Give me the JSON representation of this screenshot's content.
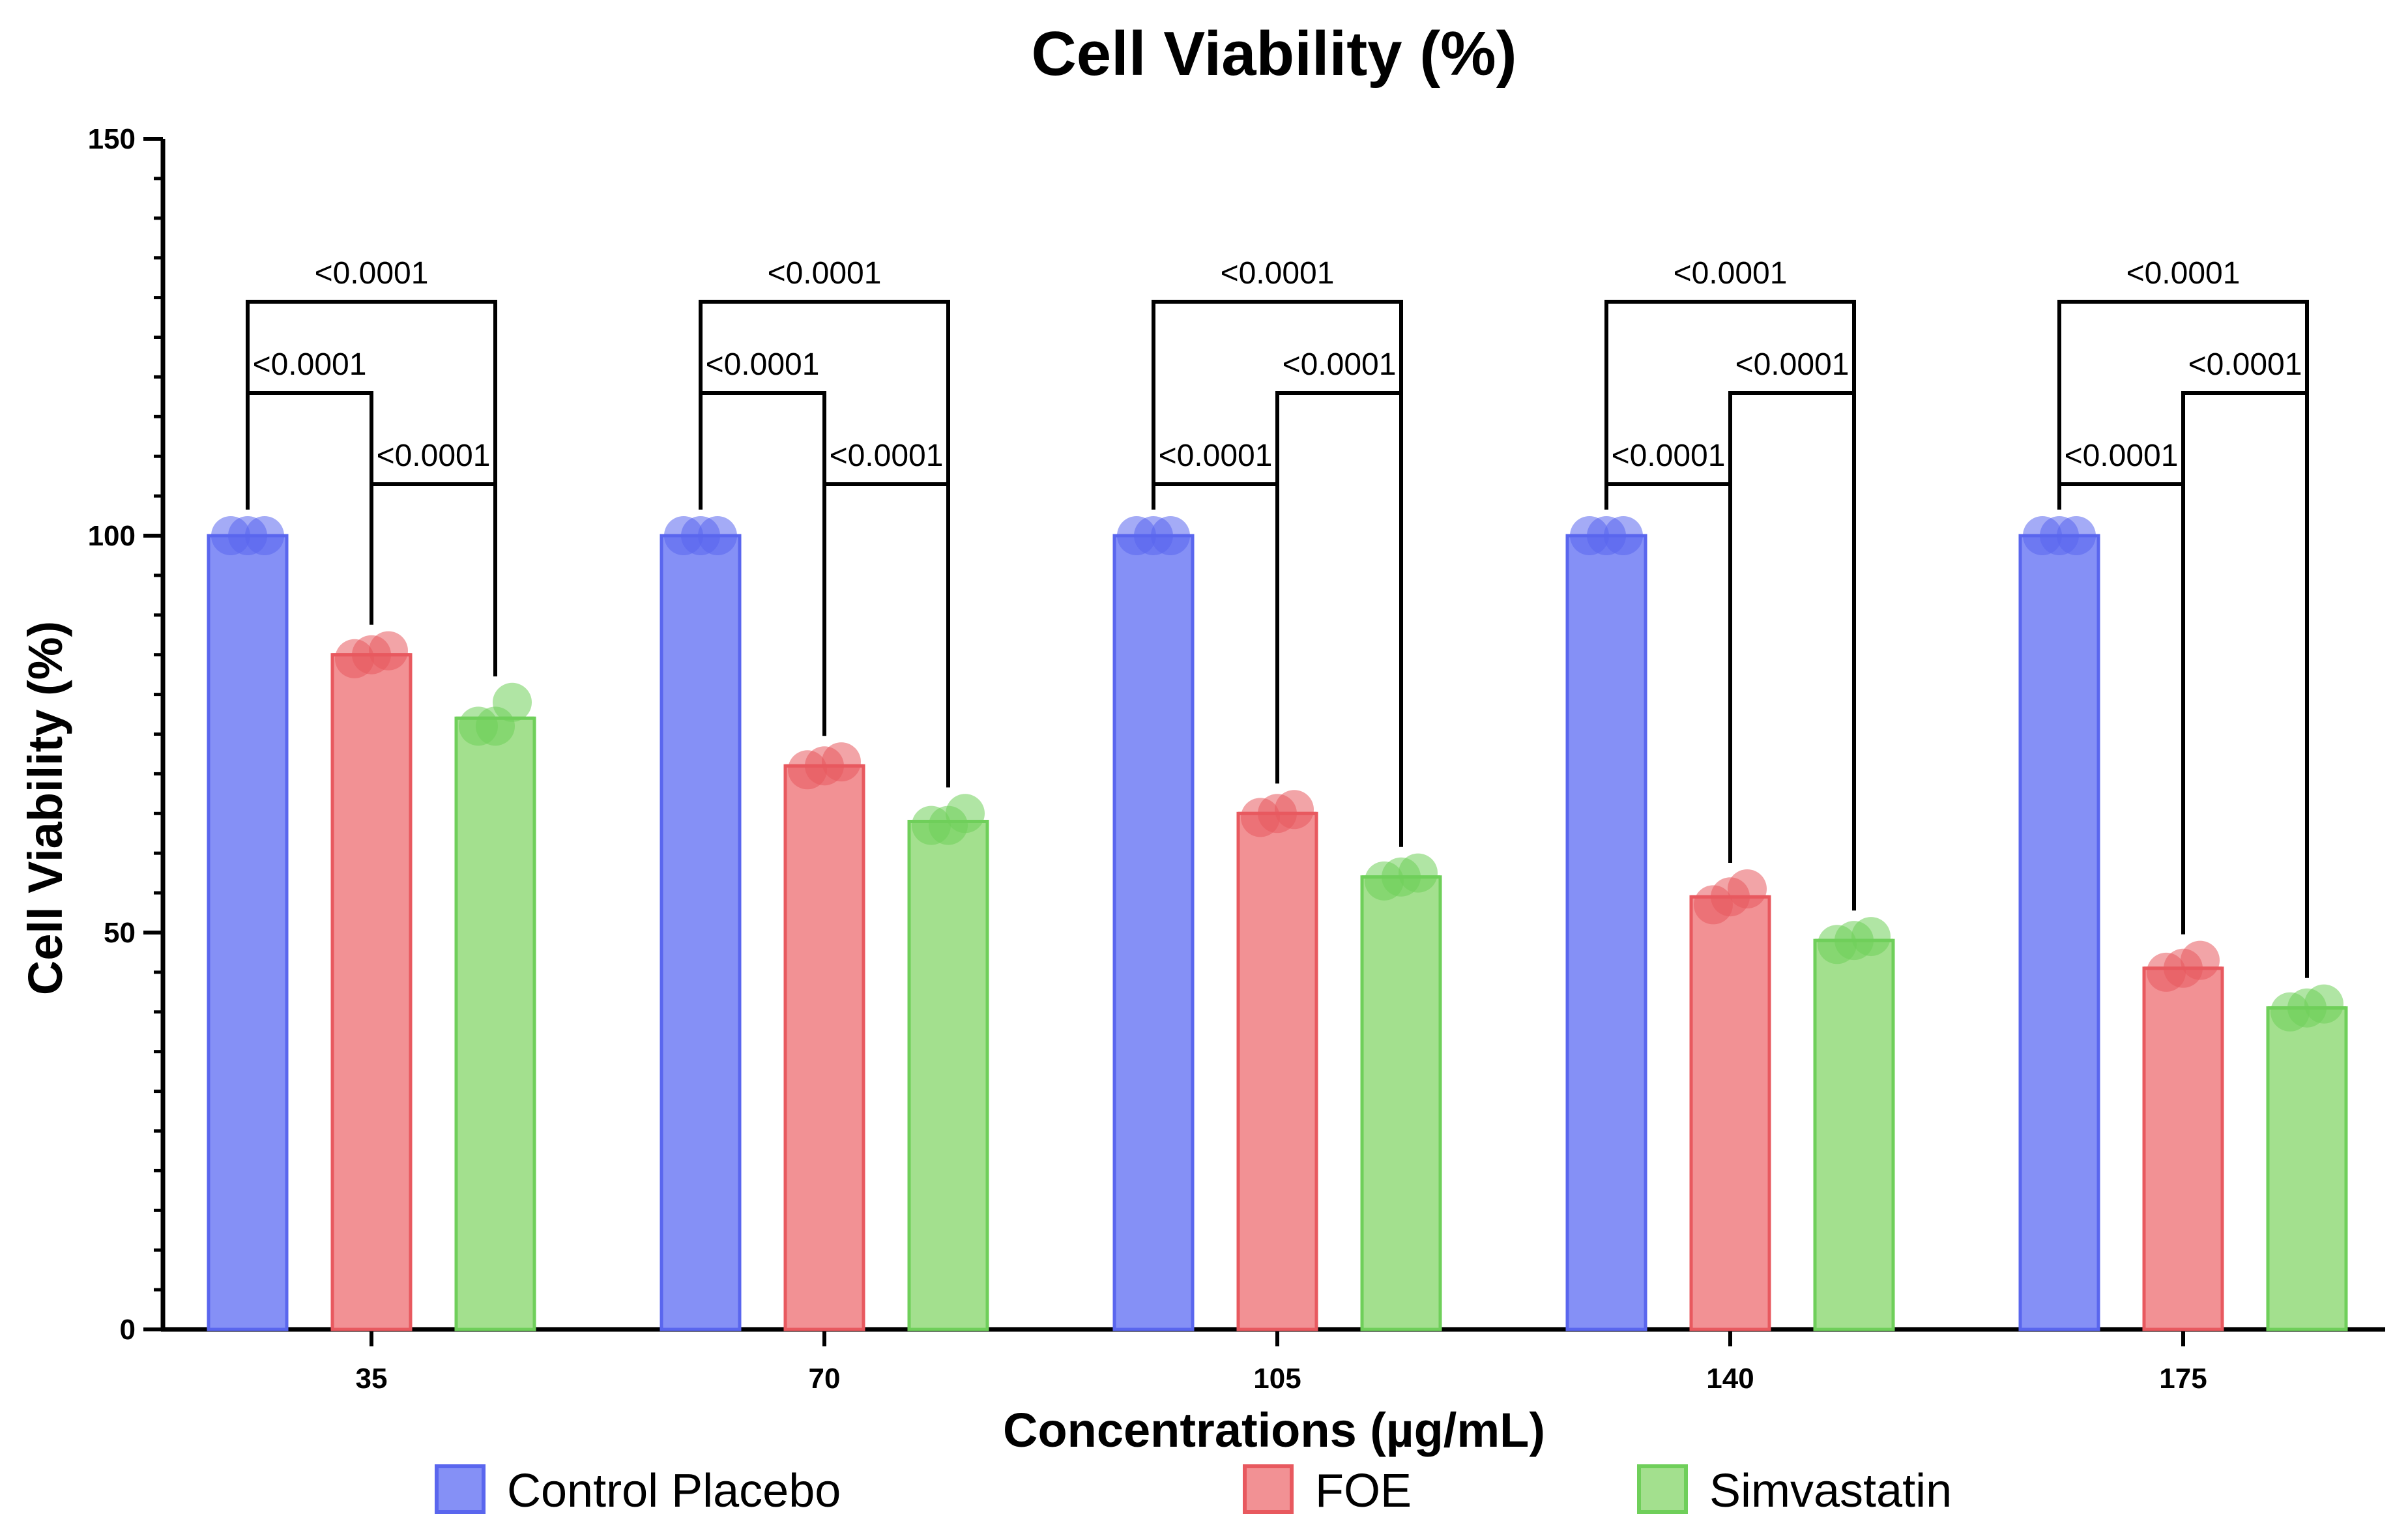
{
  "chart_data": {
    "type": "bar",
    "title": "Cell Viability (%)",
    "xlabel": "Concentrations (µg/mL)",
    "ylabel": "Cell Viability (%)",
    "ylim": [
      0,
      150
    ],
    "yticks": [
      "0",
      "50",
      "100",
      "150"
    ],
    "categories": [
      "35",
      "70",
      "105",
      "140",
      "175"
    ],
    "series": [
      {
        "name": "Control Placebo",
        "color": "#8590f6",
        "edge": "#5a66ee",
        "values": [
          100,
          100,
          100,
          100,
          100
        ]
      },
      {
        "name": "FOE",
        "color": "#f29194",
        "edge": "#e8595f",
        "values": [
          85,
          71,
          65,
          54.5,
          45.5
        ]
      },
      {
        "name": "Simvastatin",
        "color": "#a3e08e",
        "edge": "#6fcf5a",
        "values": [
          77,
          64,
          57,
          49,
          40.5
        ]
      }
    ],
    "points": [
      [
        [
          100,
          100,
          100
        ],
        [
          100,
          100,
          100
        ],
        [
          100,
          100,
          100
        ],
        [
          100,
          100,
          100
        ],
        [
          100,
          100,
          100
        ]
      ],
      [
        [
          84.5,
          85.5,
          85
        ],
        [
          70.5,
          71.5,
          71
        ],
        [
          64.5,
          65.5,
          65
        ],
        [
          53.5,
          55.5,
          54.5
        ],
        [
          45,
          46.5,
          45.5
        ]
      ],
      [
        [
          76,
          79,
          76
        ],
        [
          63.5,
          65,
          63.5
        ],
        [
          56.5,
          57.5,
          57
        ],
        [
          48.5,
          49.5,
          49
        ],
        [
          40,
          41,
          40.5
        ]
      ]
    ],
    "comparisons": [
      {
        "label": "<0.0001",
        "from": "Control Placebo",
        "to": "Simvastatin"
      },
      {
        "label": "<0.0001",
        "from": "Control Placebo",
        "to": "FOE"
      },
      {
        "label": "<0.0001",
        "from": "FOE",
        "to": "Simvastatin"
      }
    ],
    "legend_position": "bottom"
  }
}
